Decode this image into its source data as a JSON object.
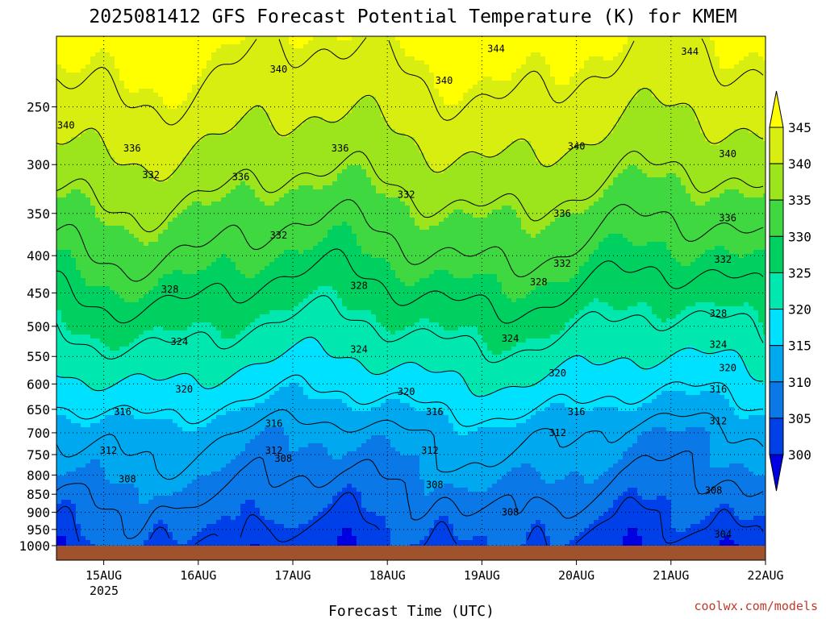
{
  "chart_data": {
    "type": "heatmap",
    "title": "2025081412 GFS Forecast Potential Temperature (K) for KMEM",
    "xlabel": "Forecast Time (UTC)",
    "ylabel": "",
    "x_ticks": [
      "15AUG",
      "16AUG",
      "17AUG",
      "18AUG",
      "19AUG",
      "20AUG",
      "21AUG",
      "22AUG"
    ],
    "x_tick_days": [
      15,
      16,
      17,
      18,
      19,
      20,
      21,
      22
    ],
    "x_sublabel": "2025",
    "xlim_days": [
      14.5,
      22.0
    ],
    "y_ticks": [
      250,
      300,
      350,
      400,
      450,
      500,
      550,
      600,
      650,
      700,
      750,
      800,
      850,
      900,
      950,
      1000
    ],
    "ylim": [
      200,
      1000
    ],
    "y_scale": "log",
    "grid": true,
    "colorbar": {
      "levels": [
        300,
        305,
        310,
        315,
        320,
        325,
        330,
        335,
        340,
        345
      ],
      "colors": [
        "#0000e0",
        "#0040e8",
        "#0a78e6",
        "#00a8f0",
        "#00e0ff",
        "#00e8b0",
        "#00d060",
        "#40d840",
        "#9ce41c",
        "#d8ee10",
        "#ffff00"
      ]
    },
    "contour_levels": [
      304,
      308,
      312,
      316,
      320,
      324,
      328,
      332,
      336,
      340,
      344
    ],
    "contour_labels": [
      {
        "text": "344",
        "day": 19.15,
        "p": 208
      },
      {
        "text": "344",
        "day": 21.2,
        "p": 210
      },
      {
        "text": "340",
        "day": 16.85,
        "p": 222
      },
      {
        "text": "340",
        "day": 18.6,
        "p": 230
      },
      {
        "text": "340",
        "day": 14.6,
        "p": 265
      },
      {
        "text": "340",
        "day": 20.0,
        "p": 283
      },
      {
        "text": "340",
        "day": 21.6,
        "p": 290
      },
      {
        "text": "336",
        "day": 15.3,
        "p": 285
      },
      {
        "text": "336",
        "day": 17.5,
        "p": 285
      },
      {
        "text": "336",
        "day": 16.45,
        "p": 312
      },
      {
        "text": "336",
        "day": 19.85,
        "p": 350
      },
      {
        "text": "336",
        "day": 21.6,
        "p": 355
      },
      {
        "text": "332",
        "day": 15.5,
        "p": 310
      },
      {
        "text": "332",
        "day": 18.2,
        "p": 330
      },
      {
        "text": "332",
        "day": 16.85,
        "p": 375
      },
      {
        "text": "332",
        "day": 19.85,
        "p": 410
      },
      {
        "text": "332",
        "day": 21.55,
        "p": 405
      },
      {
        "text": "328",
        "day": 15.7,
        "p": 445
      },
      {
        "text": "328",
        "day": 17.7,
        "p": 440
      },
      {
        "text": "328",
        "day": 19.6,
        "p": 435
      },
      {
        "text": "328",
        "day": 21.5,
        "p": 480
      },
      {
        "text": "324",
        "day": 15.8,
        "p": 525
      },
      {
        "text": "324",
        "day": 17.7,
        "p": 538
      },
      {
        "text": "324",
        "day": 19.3,
        "p": 520
      },
      {
        "text": "324",
        "day": 21.5,
        "p": 530
      },
      {
        "text": "320",
        "day": 15.85,
        "p": 610
      },
      {
        "text": "320",
        "day": 18.2,
        "p": 615
      },
      {
        "text": "320",
        "day": 19.8,
        "p": 580
      },
      {
        "text": "320",
        "day": 21.6,
        "p": 570
      },
      {
        "text": "316",
        "day": 15.2,
        "p": 655
      },
      {
        "text": "316",
        "day": 16.8,
        "p": 680
      },
      {
        "text": "316",
        "day": 18.5,
        "p": 655
      },
      {
        "text": "316",
        "day": 20.0,
        "p": 655
      },
      {
        "text": "316",
        "day": 21.5,
        "p": 610
      },
      {
        "text": "312",
        "day": 15.05,
        "p": 740
      },
      {
        "text": "312",
        "day": 16.8,
        "p": 740
      },
      {
        "text": "312",
        "day": 18.45,
        "p": 740
      },
      {
        "text": "312",
        "day": 19.8,
        "p": 700
      },
      {
        "text": "312",
        "day": 21.5,
        "p": 675
      },
      {
        "text": "308",
        "day": 15.25,
        "p": 810
      },
      {
        "text": "308",
        "day": 16.9,
        "p": 760
      },
      {
        "text": "308",
        "day": 18.5,
        "p": 825
      },
      {
        "text": "308",
        "day": 19.3,
        "p": 900
      },
      {
        "text": "308",
        "day": 21.45,
        "p": 840
      },
      {
        "text": "304",
        "day": 21.55,
        "p": 965
      }
    ],
    "credit": "coolwx.com/models"
  }
}
